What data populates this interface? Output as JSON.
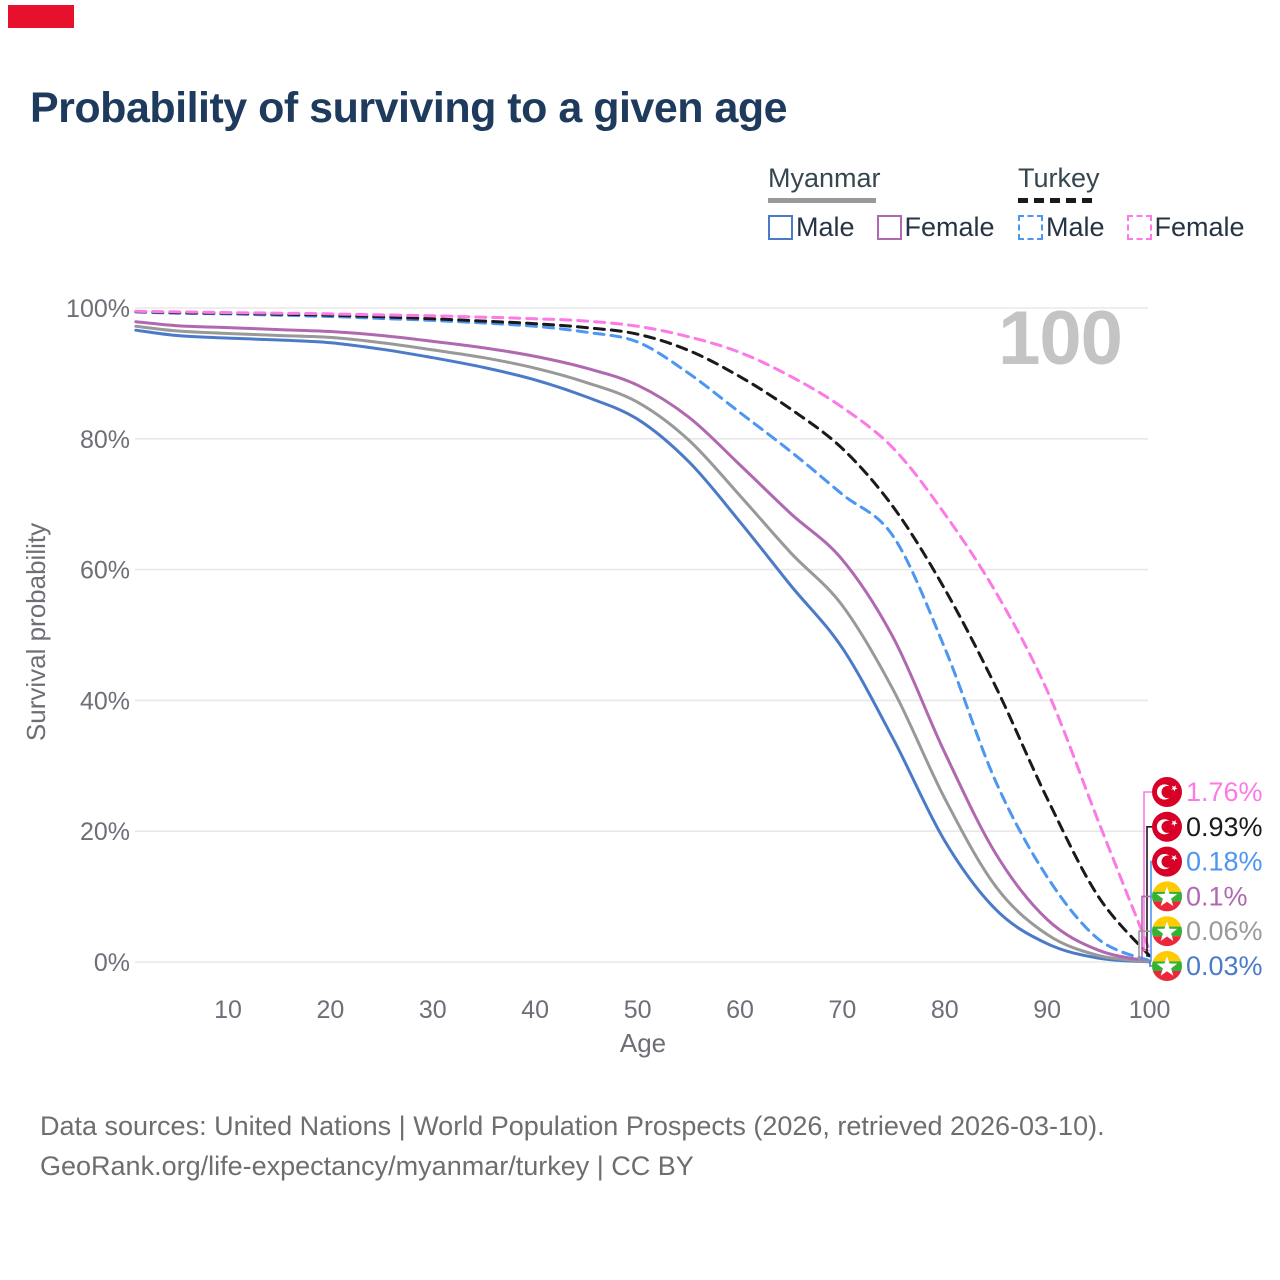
{
  "title": "Probability of surviving to a given age",
  "watermark": "100",
  "legend": {
    "groups": [
      {
        "label": "Myanmar",
        "line_style": "solid",
        "items": [
          {
            "label": "Male",
            "series": "Myanmar Male"
          },
          {
            "label": "Female",
            "series": "Myanmar Female"
          }
        ]
      },
      {
        "label": "Turkey",
        "line_style": "dashed",
        "items": [
          {
            "label": "Male",
            "series": "Turkey Male"
          },
          {
            "label": "Female",
            "series": "Turkey Female"
          }
        ]
      }
    ]
  },
  "colors": {
    "marker_red": "#e8112d",
    "title_navy": "#1e3a5c",
    "axis_text": "#6e6e78",
    "gridline": "#e8e8ea",
    "watermark_gray": "#c4c4c4",
    "footer_gray": "#6e6e6e",
    "myanmar_male_blue": "#4b7bc8",
    "myanmar_both_gray": "#999999",
    "myanmar_female_purple": "#b069b0",
    "turkey_male_blue": "#4d96f2",
    "turkey_both_black": "#1a1a1a",
    "turkey_female_pink": "#fb7ae6",
    "turkey_flag_red": "#d80027",
    "myanmar_flag_yellow": "#fecb00",
    "myanmar_flag_green": "#34b233",
    "myanmar_flag_red": "#ea2839"
  },
  "chart_data": {
    "type": "line",
    "title": "Probability of surviving to a given age",
    "xlabel": "Age",
    "ylabel": "Survival probability",
    "xlim": [
      0,
      100
    ],
    "ylim": [
      0,
      100
    ],
    "grid": "horizontal",
    "x_ticks": [
      10,
      20,
      30,
      40,
      50,
      60,
      70,
      80,
      90,
      100
    ],
    "y_ticks_percent": [
      0,
      20,
      40,
      60,
      80,
      100
    ],
    "ages": [
      1,
      5,
      10,
      15,
      20,
      25,
      30,
      35,
      40,
      45,
      50,
      55,
      60,
      65,
      70,
      75,
      80,
      85,
      90,
      95,
      100
    ],
    "series": [
      {
        "name": "Myanmar Male",
        "country": "Myanmar",
        "sex": "Male",
        "color": "#4b7bc8",
        "dashed": false,
        "flag": "myanmar",
        "end_label": "0.03%",
        "values": [
          96.6,
          95.8,
          95.4,
          95.1,
          94.7,
          93.7,
          92.4,
          90.9,
          89.0,
          86.4,
          83.0,
          76.5,
          67.3,
          57.5,
          48.0,
          34.0,
          18.5,
          8.0,
          2.8,
          0.6,
          0.03
        ]
      },
      {
        "name": "Myanmar Both sexes",
        "country": "Myanmar",
        "sex": "Both sexes",
        "color": "#999999",
        "dashed": false,
        "flag": "myanmar",
        "end_label": "0.06%",
        "values": [
          97.2,
          96.5,
          96.1,
          95.8,
          95.5,
          94.7,
          93.6,
          92.4,
          90.8,
          88.6,
          85.6,
          79.8,
          71.3,
          62.5,
          54.5,
          41.5,
          25.0,
          11.5,
          4.2,
          1.0,
          0.06
        ]
      },
      {
        "name": "Myanmar Female",
        "country": "Myanmar",
        "sex": "Female",
        "color": "#b069b0",
        "dashed": false,
        "flag": "myanmar",
        "end_label": "0.1%",
        "values": [
          97.9,
          97.3,
          97.0,
          96.7,
          96.4,
          95.8,
          94.9,
          93.9,
          92.6,
          90.8,
          88.2,
          83.3,
          76.0,
          68.5,
          61.5,
          49.5,
          32.0,
          16.5,
          6.5,
          1.8,
          0.1
        ]
      },
      {
        "name": "Turkey Male",
        "country": "Turkey",
        "sex": "Male",
        "color": "#4d96f2",
        "dashed": true,
        "flag": "turkey",
        "end_label": "0.18%",
        "values": [
          99.4,
          99.2,
          99.1,
          98.9,
          98.7,
          98.4,
          98.1,
          97.7,
          97.2,
          96.3,
          94.8,
          90.0,
          84.0,
          78.0,
          71.5,
          65.0,
          48.0,
          27.5,
          13.0,
          3.5,
          0.18
        ]
      },
      {
        "name": "Turkey Both sexes",
        "country": "Turkey",
        "sex": "Both sexes",
        "color": "#1a1a1a",
        "dashed": true,
        "flag": "turkey",
        "end_label": "0.93%",
        "values": [
          99.45,
          99.3,
          99.2,
          99.05,
          98.9,
          98.65,
          98.35,
          98.0,
          97.6,
          97.0,
          96.0,
          93.5,
          89.5,
          84.5,
          78.5,
          69.5,
          57.0,
          42.0,
          25.0,
          10.0,
          0.93
        ]
      },
      {
        "name": "Turkey Female",
        "country": "Turkey",
        "sex": "Female",
        "color": "#fb7ae6",
        "dashed": true,
        "flag": "turkey",
        "end_label": "1.76%",
        "values": [
          99.5,
          99.4,
          99.3,
          99.2,
          99.1,
          98.95,
          98.8,
          98.6,
          98.35,
          98.0,
          97.2,
          95.6,
          93.2,
          89.5,
          84.8,
          78.5,
          68.5,
          56.5,
          41.5,
          21.5,
          1.76
        ]
      }
    ]
  },
  "footer": {
    "line1": "Data sources: United Nations | World Population Prospects (2026, retrieved 2026-03-10).",
    "line2": "GeoRank.org/life-expectancy/myanmar/turkey | CC BY"
  }
}
